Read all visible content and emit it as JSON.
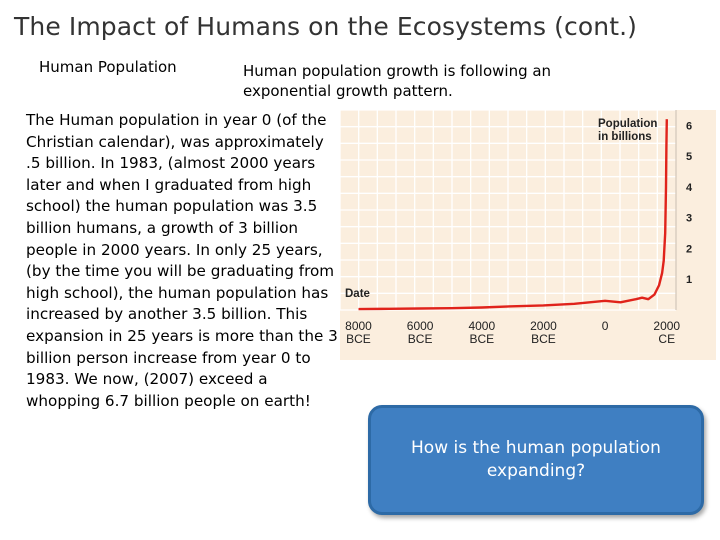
{
  "slide": {
    "title": "The Impact of Humans on the Ecosystems (cont.)",
    "subhead_left": "Human Population",
    "subhead_right": "Human population growth is following an exponential growth pattern.",
    "body": "The Human population in year 0 (of the Christian calendar), was approximately .5 billion. In 1983, (almost 2000 years later and when I graduated from high school) the human population was 3.5 billion humans, a growth of 3 billion people in 2000 years. In only 25 years, (by the time you will be graduating from high school), the human population has increased by another 3.5 billion. This expansion in 25 years is more than the 3 billion person increase from year 0 to 1983. We now, (2007) exceed a whopping 6.7 billion people on earth!",
    "callout": "How is the human population expanding?"
  },
  "chart_data": {
    "type": "line",
    "legend_title": [
      "Population",
      "in billions"
    ],
    "y_label_text": "Date",
    "x_ticks": [
      {
        "label": [
          "8000",
          "BCE"
        ],
        "x": -8000
      },
      {
        "label": [
          "6000",
          "BCE"
        ],
        "x": -6000
      },
      {
        "label": [
          "4000",
          "BCE"
        ],
        "x": -4000
      },
      {
        "label": [
          "2000",
          "BCE"
        ],
        "x": -2000
      },
      {
        "label": [
          "0"
        ],
        "x": 0
      },
      {
        "label": [
          "2000",
          "CE"
        ],
        "x": 2000
      }
    ],
    "y_ticks": [
      "1",
      "2",
      "3",
      "4",
      "5",
      "6"
    ],
    "y_tick_values": [
      1,
      2,
      3,
      4,
      5,
      6
    ],
    "xlim": [
      -8600,
      2300
    ],
    "ylim": [
      0,
      6.5
    ],
    "series": [
      {
        "color": "#e0231b",
        "points": [
          [
            -8000,
            0.03
          ],
          [
            -7000,
            0.04
          ],
          [
            -6000,
            0.05
          ],
          [
            -5000,
            0.06
          ],
          [
            -4000,
            0.08
          ],
          [
            -3000,
            0.12
          ],
          [
            -2000,
            0.15
          ],
          [
            -1000,
            0.2
          ],
          [
            0,
            0.3
          ],
          [
            500,
            0.25
          ],
          [
            1000,
            0.35
          ],
          [
            1200,
            0.4
          ],
          [
            1400,
            0.35
          ],
          [
            1600,
            0.5
          ],
          [
            1750,
            0.8
          ],
          [
            1850,
            1.2
          ],
          [
            1900,
            1.6
          ],
          [
            1950,
            2.5
          ],
          [
            1975,
            4.0
          ],
          [
            1990,
            5.3
          ],
          [
            2000,
            6.2
          ]
        ]
      }
    ],
    "colors": {
      "background": "#fbeede",
      "grid": "#ffffff",
      "line": "#e0231b",
      "frame": "#c8b8a8"
    }
  }
}
